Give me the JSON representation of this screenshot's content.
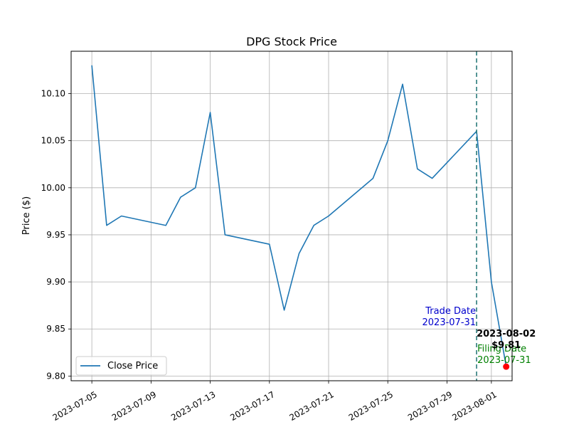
{
  "chart_data": {
    "type": "line",
    "title": "DPG Stock Price",
    "xlabel": "",
    "ylabel": "Price ($)",
    "xlim": [
      "2023-07-03.6",
      "2023-08-02.4"
    ],
    "ylim": [
      9.795,
      10.145
    ],
    "grid": true,
    "legend_position": "lower-left",
    "x_ticks": [
      "2023-07-05",
      "2023-07-09",
      "2023-07-13",
      "2023-07-17",
      "2023-07-21",
      "2023-07-25",
      "2023-07-29",
      "2023-08-01"
    ],
    "y_ticks": [
      "9.80",
      "9.85",
      "9.90",
      "9.95",
      "10.00",
      "10.05",
      "10.10"
    ],
    "series": [
      {
        "name": "Close Price",
        "color": "#1f77b4",
        "points": [
          {
            "x": "2023-07-05",
            "y": 10.13
          },
          {
            "x": "2023-07-06",
            "y": 9.96
          },
          {
            "x": "2023-07-07",
            "y": 9.97
          },
          {
            "x": "2023-07-10",
            "y": 9.96
          },
          {
            "x": "2023-07-11",
            "y": 9.99
          },
          {
            "x": "2023-07-12",
            "y": 10.0
          },
          {
            "x": "2023-07-13",
            "y": 10.08
          },
          {
            "x": "2023-07-14",
            "y": 9.95
          },
          {
            "x": "2023-07-17",
            "y": 9.94
          },
          {
            "x": "2023-07-18",
            "y": 9.87
          },
          {
            "x": "2023-07-19",
            "y": 9.93
          },
          {
            "x": "2023-07-20",
            "y": 9.96
          },
          {
            "x": "2023-07-21",
            "y": 9.97
          },
          {
            "x": "2023-07-24",
            "y": 10.01
          },
          {
            "x": "2023-07-25",
            "y": 10.05
          },
          {
            "x": "2023-07-26",
            "y": 10.11
          },
          {
            "x": "2023-07-27",
            "y": 10.02
          },
          {
            "x": "2023-07-28",
            "y": 10.01
          },
          {
            "x": "2023-07-31",
            "y": 10.06
          },
          {
            "x": "2023-08-01",
            "y": 9.9
          },
          {
            "x": "2023-08-02",
            "y": 9.81
          }
        ]
      }
    ],
    "vertical_line": {
      "x": "2023-07-31",
      "color": "#2a7a7a",
      "style": "dashed"
    },
    "highlight_point": {
      "x": "2023-08-02",
      "y": 9.81,
      "color": "#ff0000"
    },
    "annotations": {
      "trade_date_label": "Trade Date",
      "trade_date_value": "2023-07-31",
      "trade_color": "#0000cd",
      "filing_date_label": "Filing Date",
      "filing_date_value": "2023-07-31",
      "filing_color": "#008000",
      "last_date": "2023-08-02",
      "last_price": "$9.81"
    },
    "legend": {
      "label": "Close Price"
    }
  }
}
